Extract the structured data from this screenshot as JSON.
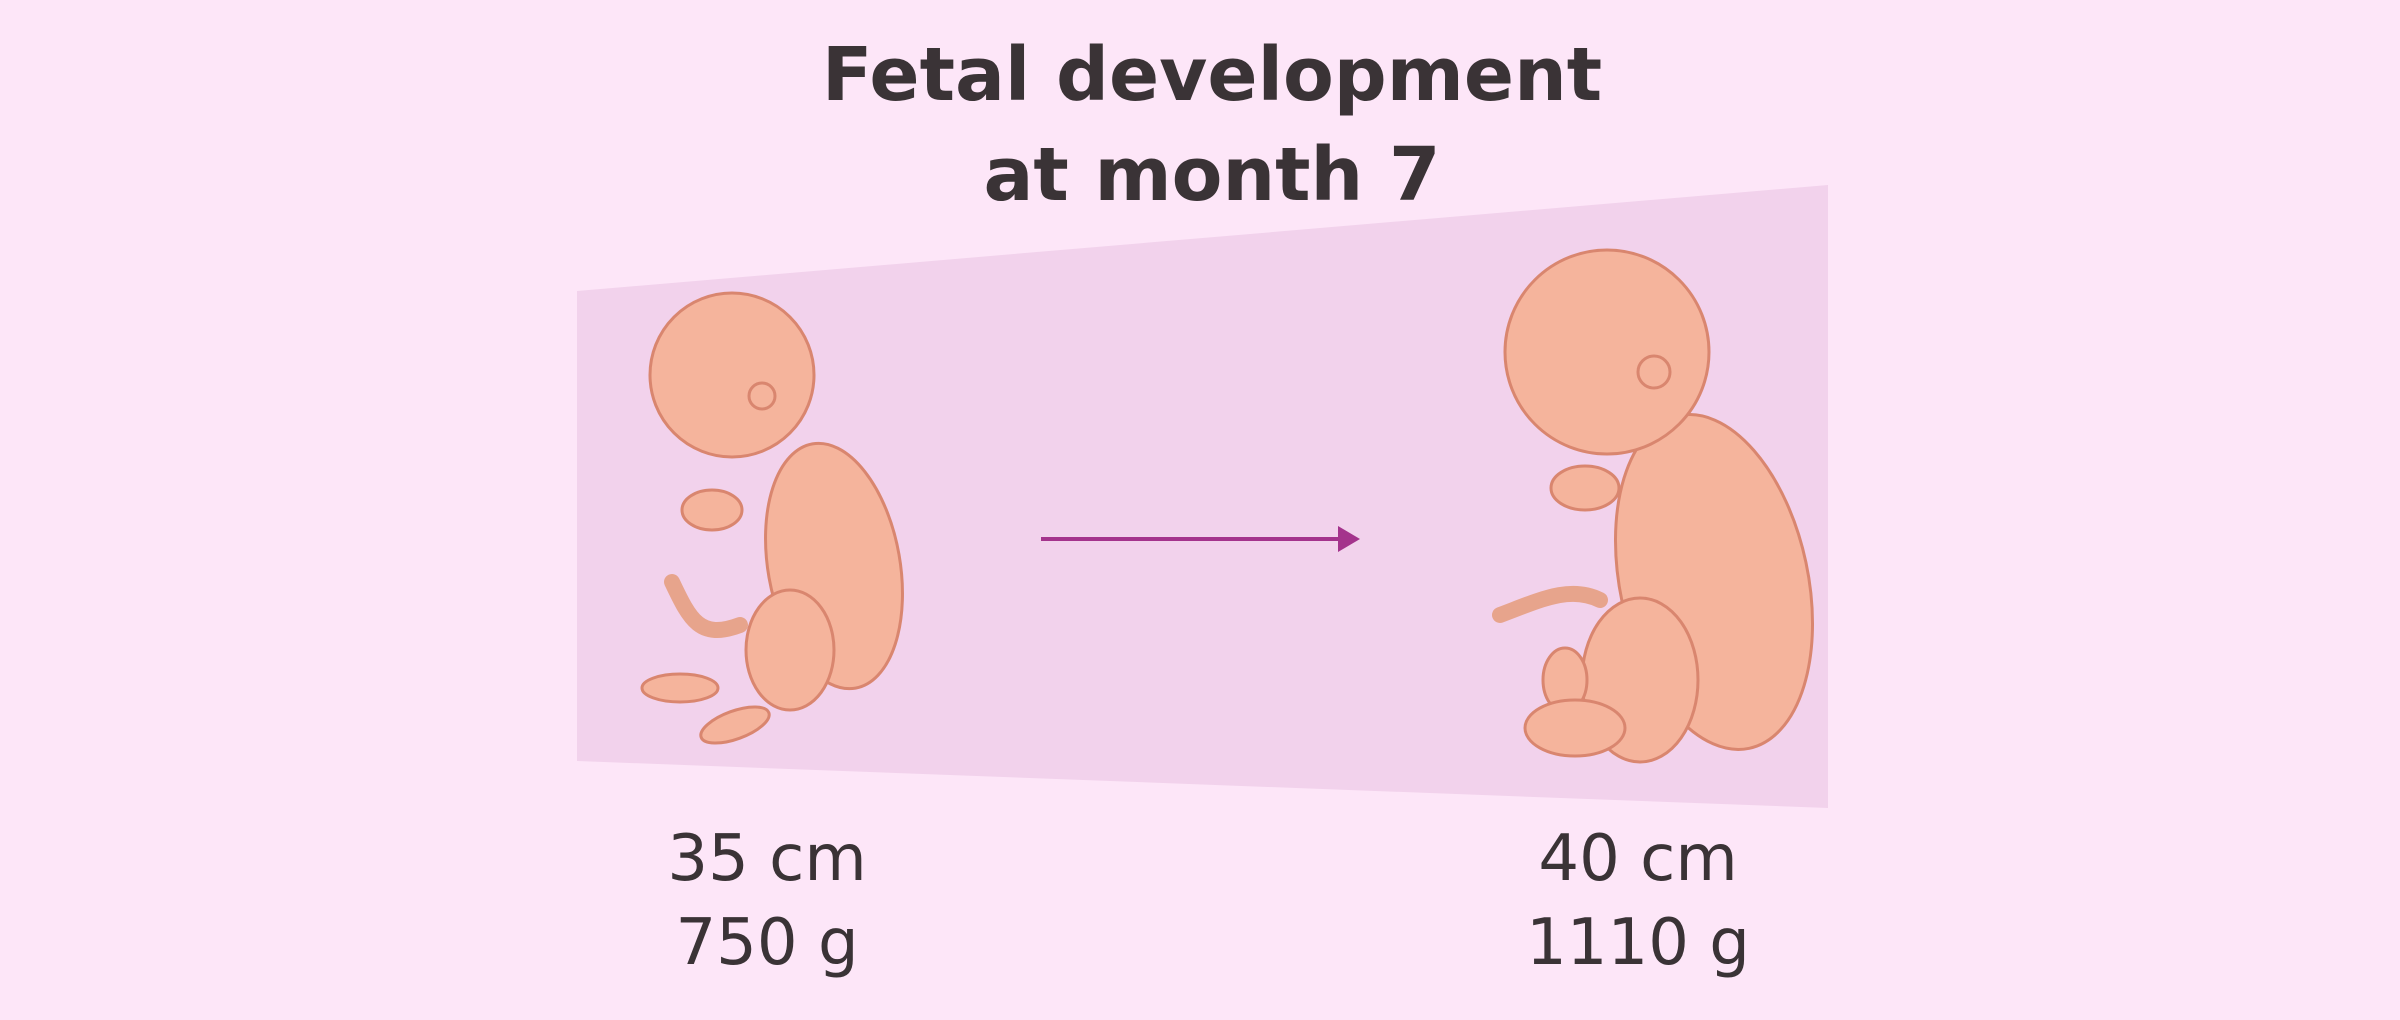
{
  "title": {
    "lines": [
      "Fetal development",
      "at month 7"
    ]
  },
  "left": {
    "length": "35 cm",
    "weight": "750 g"
  },
  "right": {
    "length": "40 cm",
    "weight": "1110 g"
  }
}
